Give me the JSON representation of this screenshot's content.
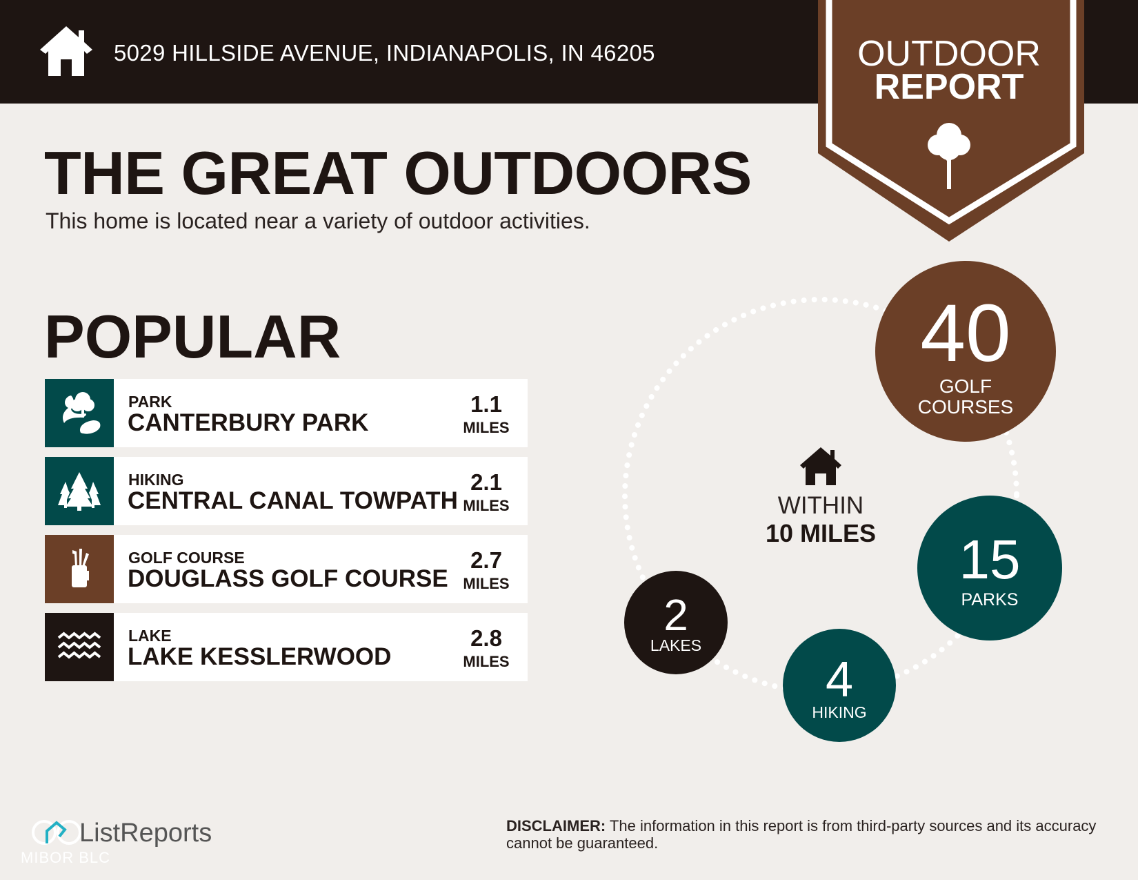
{
  "header": {
    "address": "5029 HILLSIDE AVENUE, INDIANAPOLIS, IN 46205",
    "icon": "home-icon"
  },
  "badge": {
    "line1": "OUTDOOR",
    "line2": "REPORT",
    "icon": "tree-icon"
  },
  "title": "THE GREAT OUTDOORS",
  "subtitle": "This home is located near a variety of outdoor activities.",
  "popular": {
    "heading": "POPULAR",
    "items": [
      {
        "category": "PARK",
        "name": "CANTERBURY PARK",
        "distance": "1.1",
        "unit": "MILES",
        "icon": "park-icon",
        "color": "#024a4a"
      },
      {
        "category": "HIKING",
        "name": "CENTRAL CANAL TOWPATH",
        "distance": "2.1",
        "unit": "MILES",
        "icon": "pine-trees-icon",
        "color": "#024a4a"
      },
      {
        "category": "GOLF COURSE",
        "name": "DOUGLASS GOLF COURSE",
        "distance": "2.7",
        "unit": "MILES",
        "icon": "golf-bag-icon",
        "color": "#6b3f27"
      },
      {
        "category": "LAKE",
        "name": "LAKE KESSLERWOOD",
        "distance": "2.8",
        "unit": "MILES",
        "icon": "waves-icon",
        "color": "#1e1512"
      }
    ]
  },
  "radius": {
    "line1": "WITHIN",
    "line2": "10 MILES"
  },
  "counts": [
    {
      "value": "40",
      "label1": "GOLF",
      "label2": "COURSES",
      "color": "#6b3f27"
    },
    {
      "value": "15",
      "label1": "PARKS",
      "color": "#024a4a"
    },
    {
      "value": "4",
      "label1": "HIKING",
      "color": "#024a4a"
    },
    {
      "value": "2",
      "label1": "LAKES",
      "color": "#1e1512"
    }
  ],
  "disclaimer": {
    "bold": "DISCLAIMER:",
    "text": " The information in this report is from third-party sources and its accuracy cannot be guaranteed."
  },
  "footer": {
    "logo": "ListReports",
    "sublogo": "MIBOR BLC"
  },
  "colors": {
    "dark": "#1e1512",
    "brown": "#6b3f27",
    "teal": "#024a4a",
    "background": "#f1eeeb"
  }
}
